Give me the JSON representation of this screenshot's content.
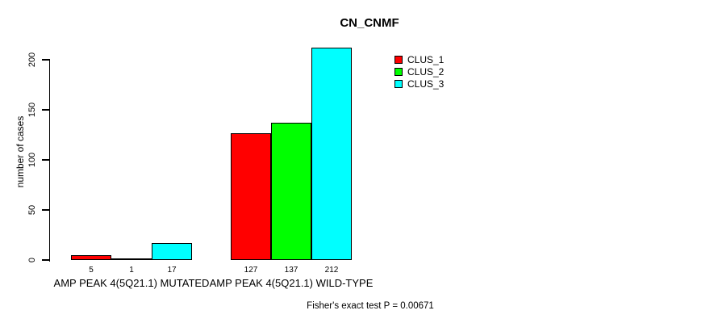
{
  "chart_data": {
    "type": "bar",
    "title": "CN_CNMF",
    "ylabel": "number of cases",
    "xlabel": "",
    "categories": [
      "AMP PEAK 4(5Q21.1) MUTATED",
      "AMP PEAK 4(5Q21.1) WILD-TYPE"
    ],
    "series": [
      {
        "name": "CLUS_1",
        "color": "#FF0000",
        "values": [
          5,
          127
        ]
      },
      {
        "name": "CLUS_2",
        "color": "#00FF00",
        "values": [
          1,
          137
        ]
      },
      {
        "name": "CLUS_3",
        "color": "#00FFFF",
        "values": [
          17,
          212
        ]
      }
    ],
    "bar_value_labels": [
      [
        5,
        1,
        17
      ],
      [
        127,
        137,
        212
      ]
    ],
    "yticks": [
      0,
      50,
      100,
      150,
      200
    ],
    "ylim": [
      0,
      220
    ],
    "grid": false,
    "legend_position": "top-right",
    "legend_entries": [
      "CLUS_1",
      "CLUS_2",
      "CLUS_3"
    ],
    "annotation": "Fisher's exact test P = 0.00671"
  },
  "colors": {
    "background": "#FFFFFF",
    "axis": "#000000",
    "text": "#000000",
    "clus1": "#FF0000",
    "clus2": "#00FF00",
    "clus3": "#00FFFF"
  }
}
